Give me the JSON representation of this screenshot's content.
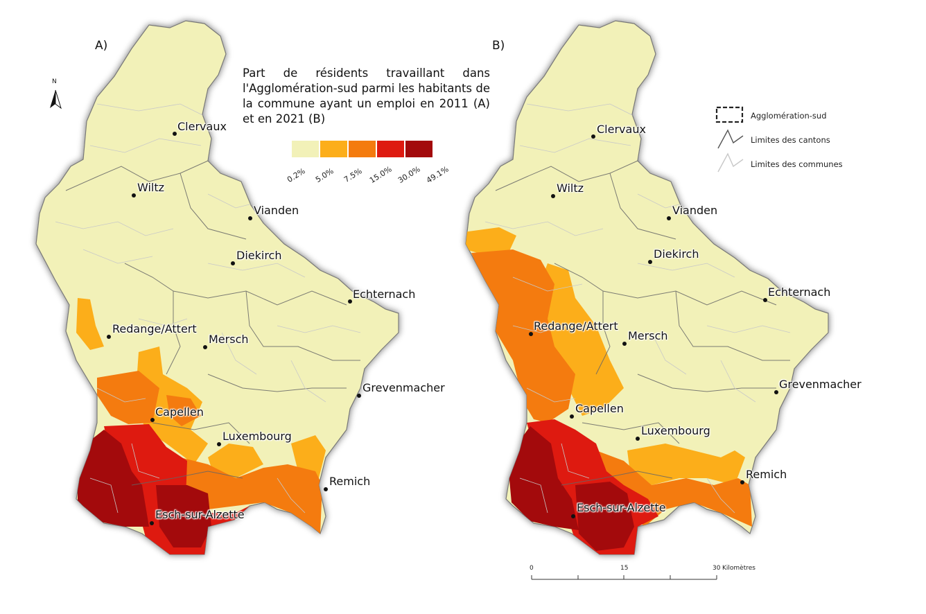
{
  "panels": [
    {
      "letter": "A)"
    },
    {
      "letter": "B)"
    }
  ],
  "legend": {
    "title": "Part de résidents travaillant dans l'Agglomération-sud parmi les habitants de la commune ayant un emploi en 2011 (A) et en 2021 (B)",
    "classes": [
      {
        "color": "#f2f1b8"
      },
      {
        "color": "#fcae1a"
      },
      {
        "color": "#f47b0f"
      },
      {
        "color": "#de1a10"
      },
      {
        "color": "#a30a0c"
      }
    ],
    "breaks": [
      "0.2%",
      "5.0%",
      "7.5%",
      "15.0%",
      "30.0%",
      "49.1%"
    ]
  },
  "legend_b": {
    "agglo": "Agglomération-sud",
    "cantons": "Limites des cantons",
    "communes": "Limites des communes"
  },
  "north": "N",
  "scale": {
    "tick0": "0",
    "tick15": "15",
    "tick30": "30",
    "unit": "Kilomètres"
  },
  "cities": {
    "clervaux": "Clervaux",
    "wiltz": "Wiltz",
    "vianden": "Vianden",
    "diekirch": "Diekirch",
    "echternach": "Echternach",
    "redange": "Redange/Attert",
    "mersch": "Mersch",
    "grevenmacher": "Grevenmacher",
    "capellen": "Capellen",
    "luxembourg": "Luxembourg",
    "remich": "Remich",
    "esch": "Esch-sur-Alzette"
  },
  "colors": {
    "class1": "#f2f1b8",
    "class2": "#fcae1a",
    "class3": "#f47b0f",
    "class4": "#de1a10",
    "class5": "#a30a0c"
  }
}
